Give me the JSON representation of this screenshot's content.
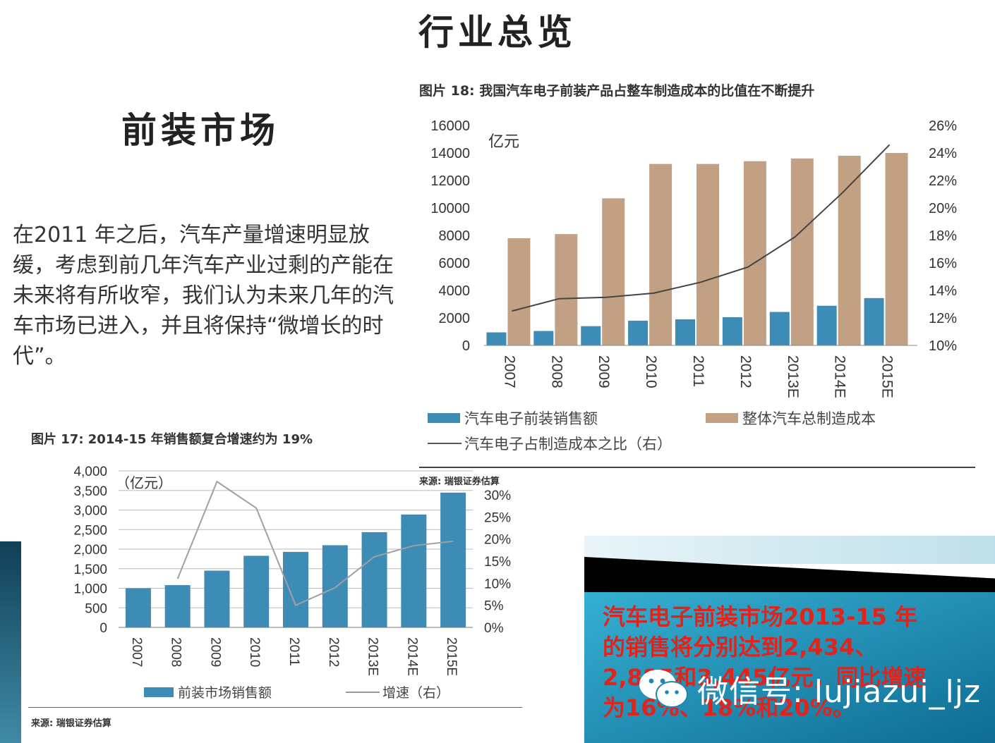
{
  "slide": {
    "title": "行业总览",
    "section_title": "前装市场",
    "body_text": "在2011 年之后，汽车产量增速明显放缓，考虑到前几年汽车产业过剩的产能在未来将有所收窄，我们认为未来几年的汽车市场已进入，并且将保持“微增长的时代”。"
  },
  "colors": {
    "bar_blue": "#3d8cb5",
    "bar_tan": "#c2a083",
    "line_dark": "#444444",
    "line_gray": "#a0a0a0",
    "panel_text": "#e0241c"
  },
  "panel": {
    "text": "汽车电子前装市场2013-15 年的销售将分别达到2,434、2,885和3,445亿元，同比增速为16%、18%和20%。"
  },
  "watermark": {
    "icon": "wechat-icon",
    "text": "微信号: lujiazui_ljz"
  },
  "chart_data": [
    {
      "type": "bar",
      "caption": "图片 18: 我国汽车电子前装产品占整车制造成本的比值在不断提升",
      "unit_label": "亿元",
      "categories": [
        "2007",
        "2008",
        "2009",
        "2010",
        "2011",
        "2012",
        "2013E",
        "2014E",
        "2015E"
      ],
      "y_ticks": [
        "0",
        "2000",
        "4000",
        "6000",
        "8000",
        "10000",
        "12000",
        "14000",
        "16000"
      ],
      "y2_ticks": [
        "10%",
        "12%",
        "14%",
        "16%",
        "18%",
        "20%",
        "22%",
        "24%",
        "26%"
      ],
      "ylim": [
        0,
        16000
      ],
      "y2lim": [
        10,
        26
      ],
      "series": [
        {
          "name": "汽车电子前装销售额",
          "kind": "bar",
          "values": [
            950,
            1050,
            1400,
            1800,
            1900,
            2050,
            2434,
            2885,
            3445
          ]
        },
        {
          "name": "整体汽车总制造成本",
          "kind": "bar",
          "values": [
            7800,
            8100,
            10700,
            13200,
            13200,
            13400,
            13600,
            13800,
            14000
          ]
        },
        {
          "name": "汽车电子占制造成本之比（右）",
          "kind": "line",
          "axis": "right",
          "values": [
            12.5,
            13.4,
            13.5,
            13.8,
            14.6,
            15.7,
            17.9,
            21.1,
            24.6
          ]
        }
      ],
      "source": "来源: 瑞银证券估算"
    },
    {
      "type": "bar",
      "caption": "图片 17: 2014-15 年销售额复合增速约为 19%",
      "unit_label": "（亿元）",
      "categories": [
        "2007",
        "2008",
        "2009",
        "2010",
        "2011",
        "2012",
        "2013E",
        "2014E",
        "2015E"
      ],
      "y_ticks": [
        "0",
        "500",
        "1,000",
        "1,500",
        "2,000",
        "2,500",
        "3,000",
        "3,500",
        "4,000"
      ],
      "y2_ticks": [
        "0%",
        "5%",
        "10%",
        "15%",
        "20%",
        "25%",
        "30%"
      ],
      "ylim": [
        0,
        4000
      ],
      "y2lim": [
        0,
        30
      ],
      "series": [
        {
          "name": "前装市场销售额",
          "kind": "bar",
          "values": [
            1000,
            1080,
            1450,
            1830,
            1930,
            2100,
            2434,
            2885,
            3445
          ]
        },
        {
          "name": "增速（右）",
          "kind": "line",
          "axis": "right",
          "values": [
            null,
            11,
            33,
            27,
            5,
            9,
            16,
            18.5,
            19.5
          ]
        }
      ],
      "source": "来源: 瑞银证券估算"
    }
  ]
}
